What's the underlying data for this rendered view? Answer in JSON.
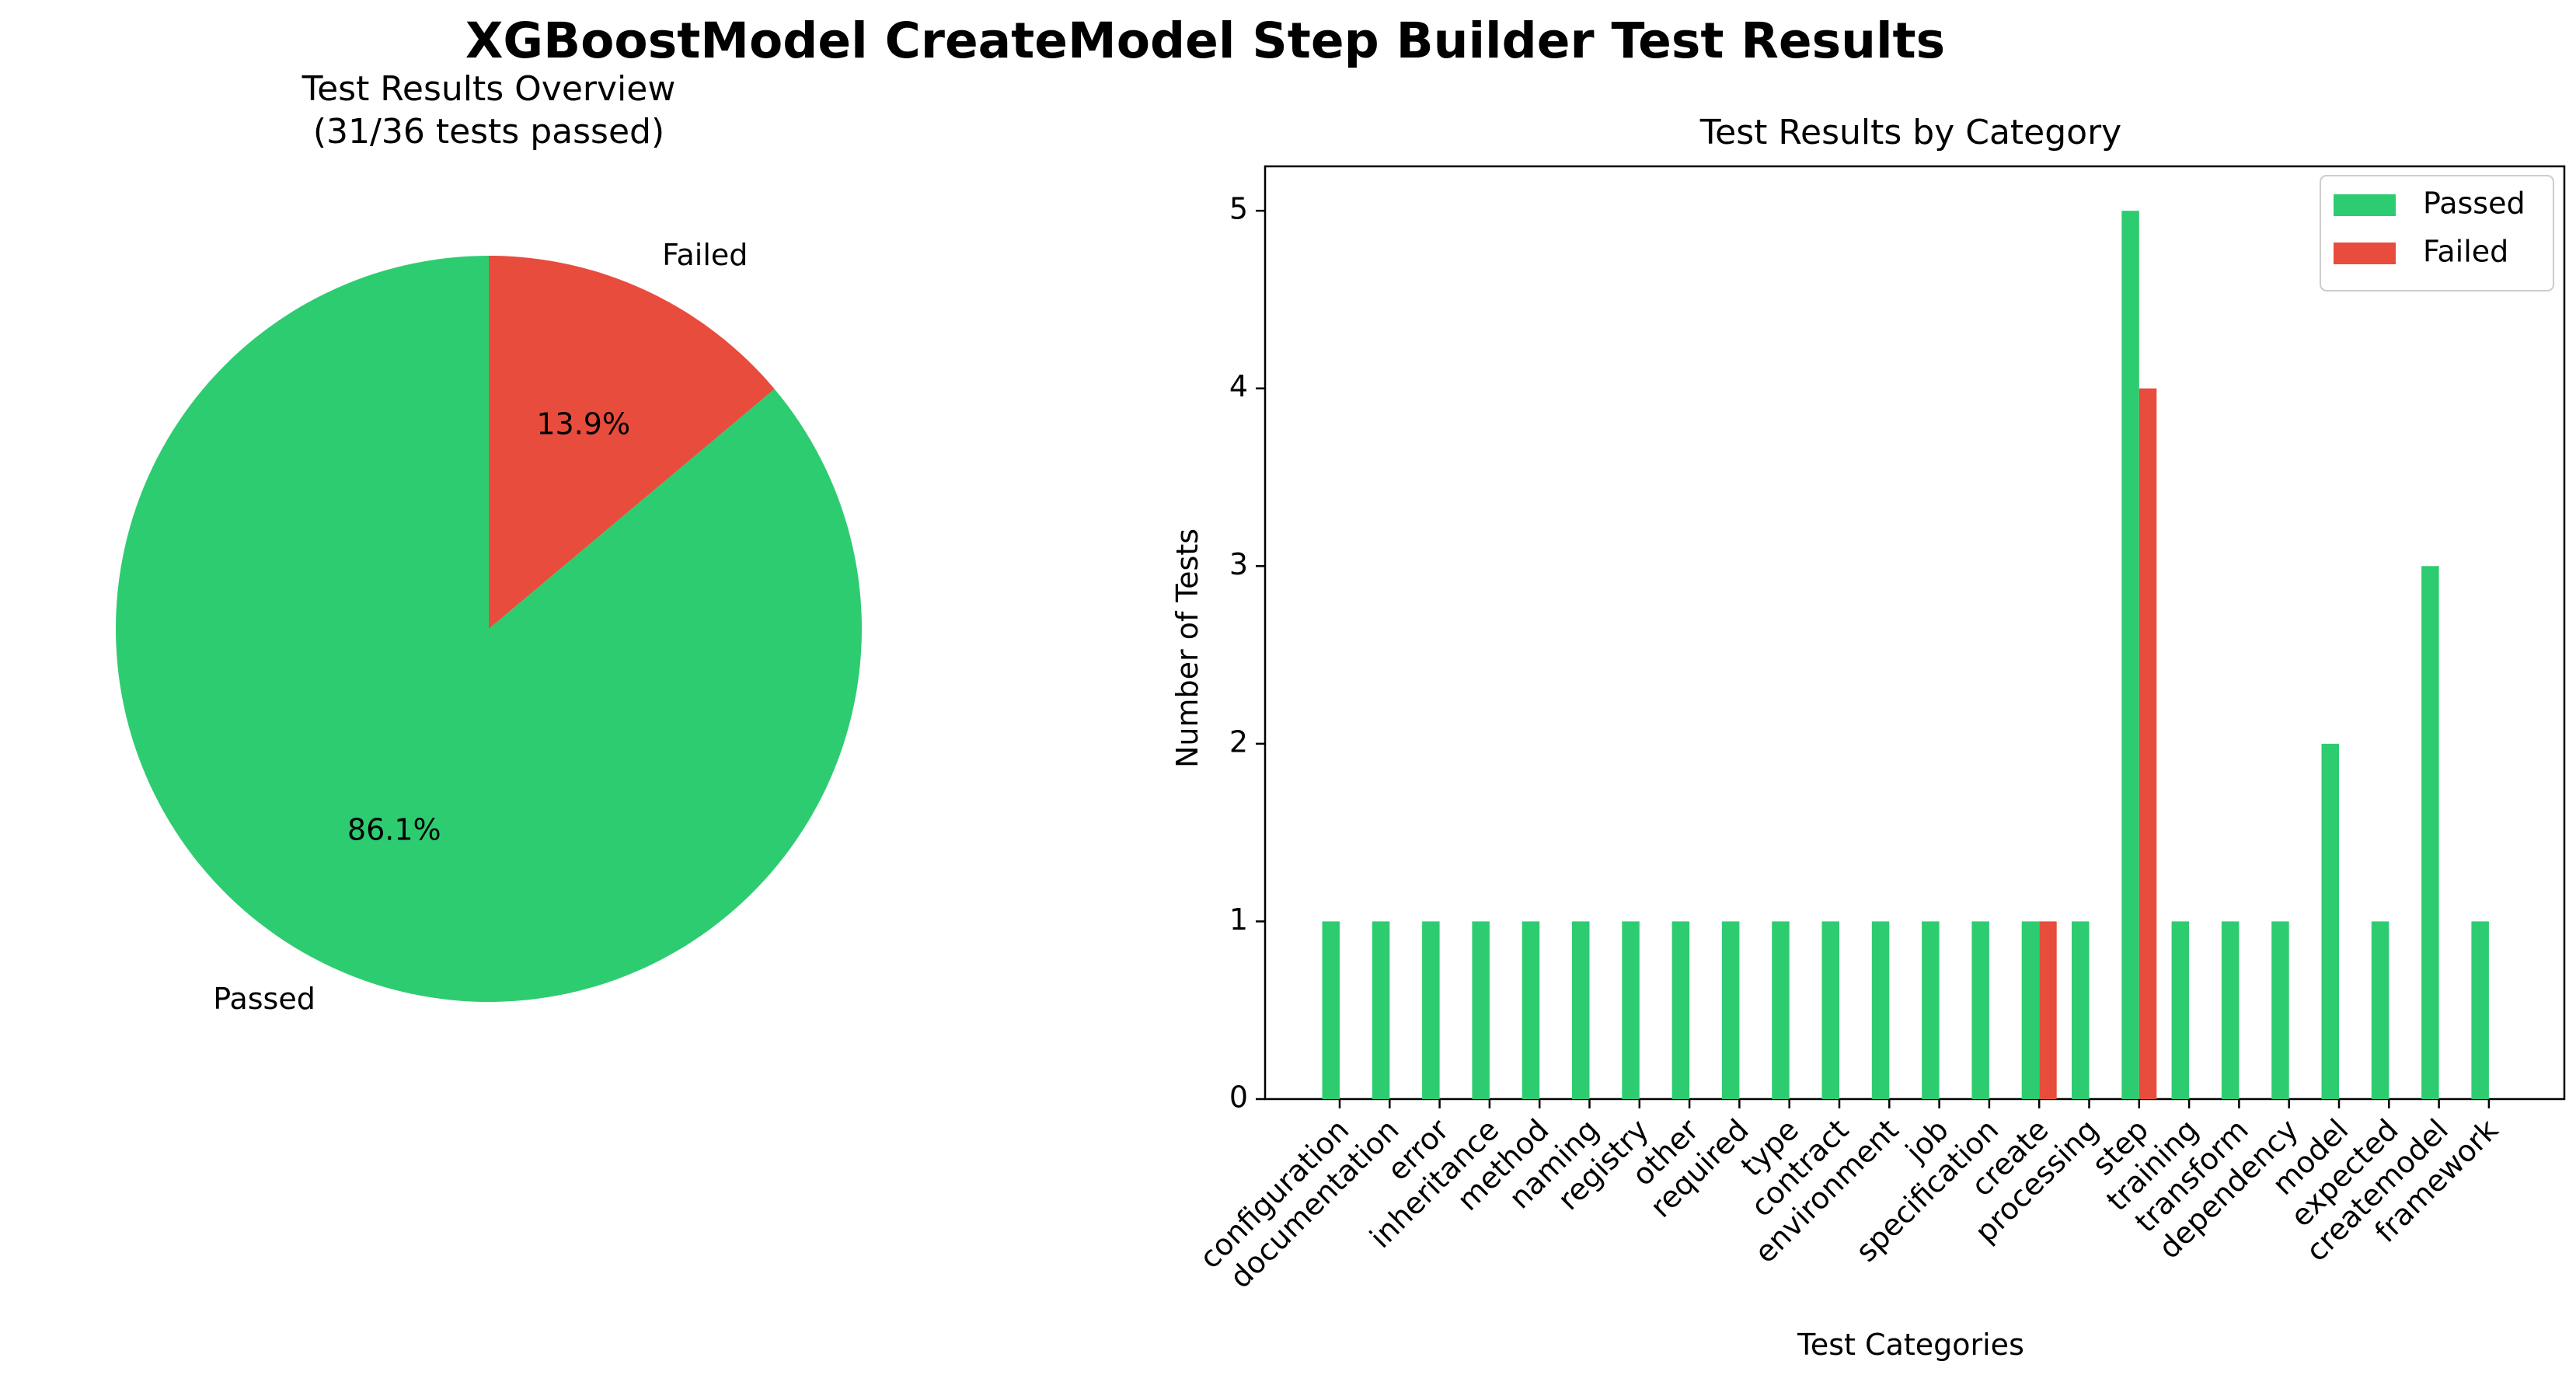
{
  "figure": {
    "suptitle": "XGBoostModel CreateModel Step Builder Test Results"
  },
  "colors": {
    "passed": "#2ecc71",
    "failed": "#e74c3c",
    "axis": "#000000"
  },
  "chart_data": [
    {
      "type": "pie",
      "title": "Test Results Overview\n(31/36 tests passed)",
      "labels": [
        "Passed",
        "Failed"
      ],
      "values": [
        31,
        5
      ],
      "percent_labels": [
        "86.1%",
        "13.9%"
      ],
      "start_angle_deg": 90,
      "colors": [
        "#2ecc71",
        "#e74c3c"
      ]
    },
    {
      "type": "bar",
      "title": "Test Results by Category",
      "xlabel": "Test Categories",
      "ylabel": "Number of Tests",
      "ylim": [
        0,
        5.25
      ],
      "yticks": [
        0,
        1,
        2,
        3,
        4,
        5
      ],
      "legend_location": "upper right",
      "categories": [
        "configuration",
        "documentation",
        "error",
        "inheritance",
        "method",
        "naming",
        "registry",
        "other",
        "required",
        "type",
        "contract",
        "environment",
        "job",
        "specification",
        "create",
        "processing",
        "step",
        "training",
        "transform",
        "dependency",
        "model",
        "expected",
        "createmodel",
        "framework"
      ],
      "series": [
        {
          "name": "Passed",
          "color": "#2ecc71",
          "values": [
            1,
            1,
            1,
            1,
            1,
            1,
            1,
            1,
            1,
            1,
            1,
            1,
            1,
            1,
            1,
            1,
            5,
            1,
            1,
            1,
            2,
            1,
            3,
            1
          ]
        },
        {
          "name": "Failed",
          "color": "#e74c3c",
          "values": [
            0,
            0,
            0,
            0,
            0,
            0,
            0,
            0,
            0,
            0,
            0,
            0,
            0,
            0,
            1,
            0,
            4,
            0,
            0,
            0,
            0,
            0,
            0,
            0
          ]
        }
      ]
    }
  ]
}
